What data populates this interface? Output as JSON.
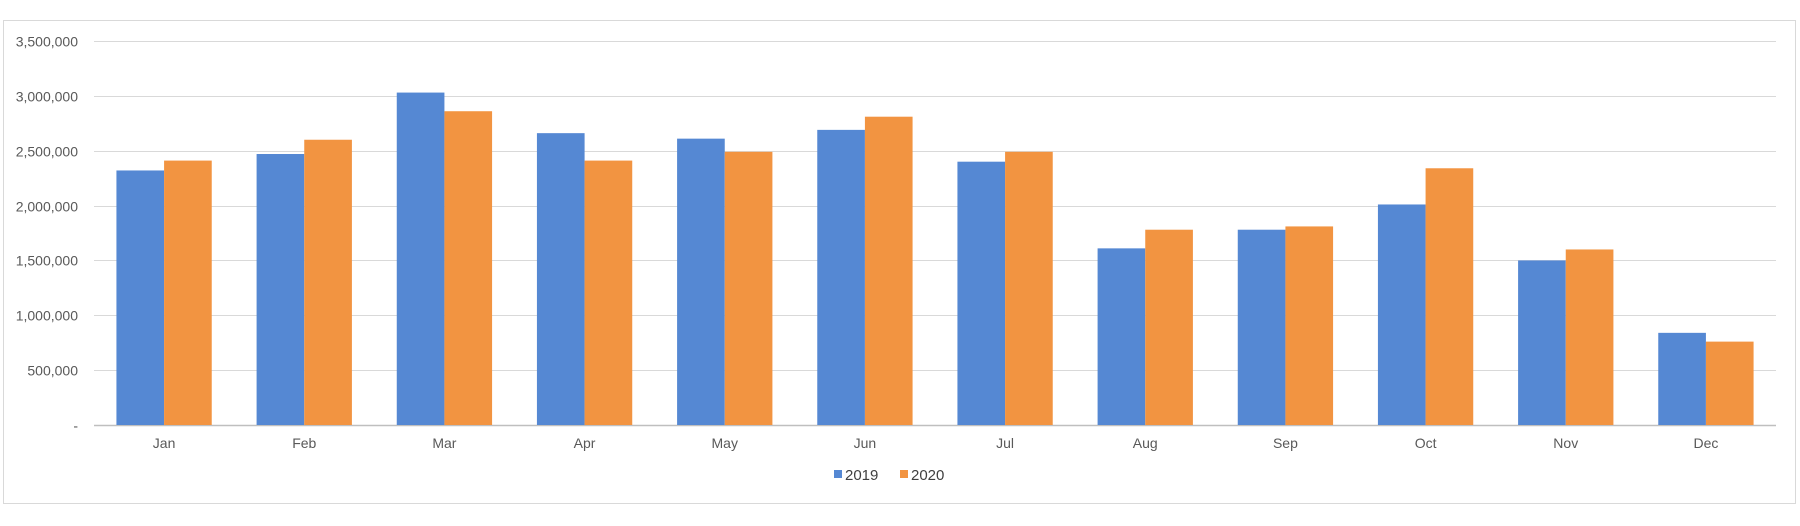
{
  "chart_data": {
    "type": "bar",
    "title": "",
    "xlabel": "",
    "ylabel": "",
    "categories": [
      "Jan",
      "Feb",
      "Mar",
      "Apr",
      "May",
      "Jun",
      "Jul",
      "Aug",
      "Sep",
      "Oct",
      "Nov",
      "Dec"
    ],
    "series": [
      {
        "name": "2019",
        "color": "#5588d3",
        "values": [
          2320000,
          2470000,
          3030000,
          2660000,
          2610000,
          2690000,
          2400000,
          1610000,
          1780000,
          2010000,
          1500000,
          840000
        ]
      },
      {
        "name": "2020",
        "color": "#f29441",
        "values": [
          2410000,
          2600000,
          2860000,
          2410000,
          2490000,
          2810000,
          2490000,
          1780000,
          1810000,
          2340000,
          1600000,
          760000
        ]
      }
    ],
    "ylim": [
      0,
      3500000
    ],
    "yticks": [
      0,
      500000,
      1000000,
      1500000,
      2000000,
      2500000,
      3000000,
      3500000
    ],
    "ytick_labels": [
      "-",
      "500,000",
      "1,000,000",
      "1,500,000",
      "2,000,000",
      "2,500,000",
      "3,000,000",
      "3,500,000"
    ],
    "grid": true,
    "legend": "bottom",
    "gridline_color": "#d9d9d9"
  }
}
